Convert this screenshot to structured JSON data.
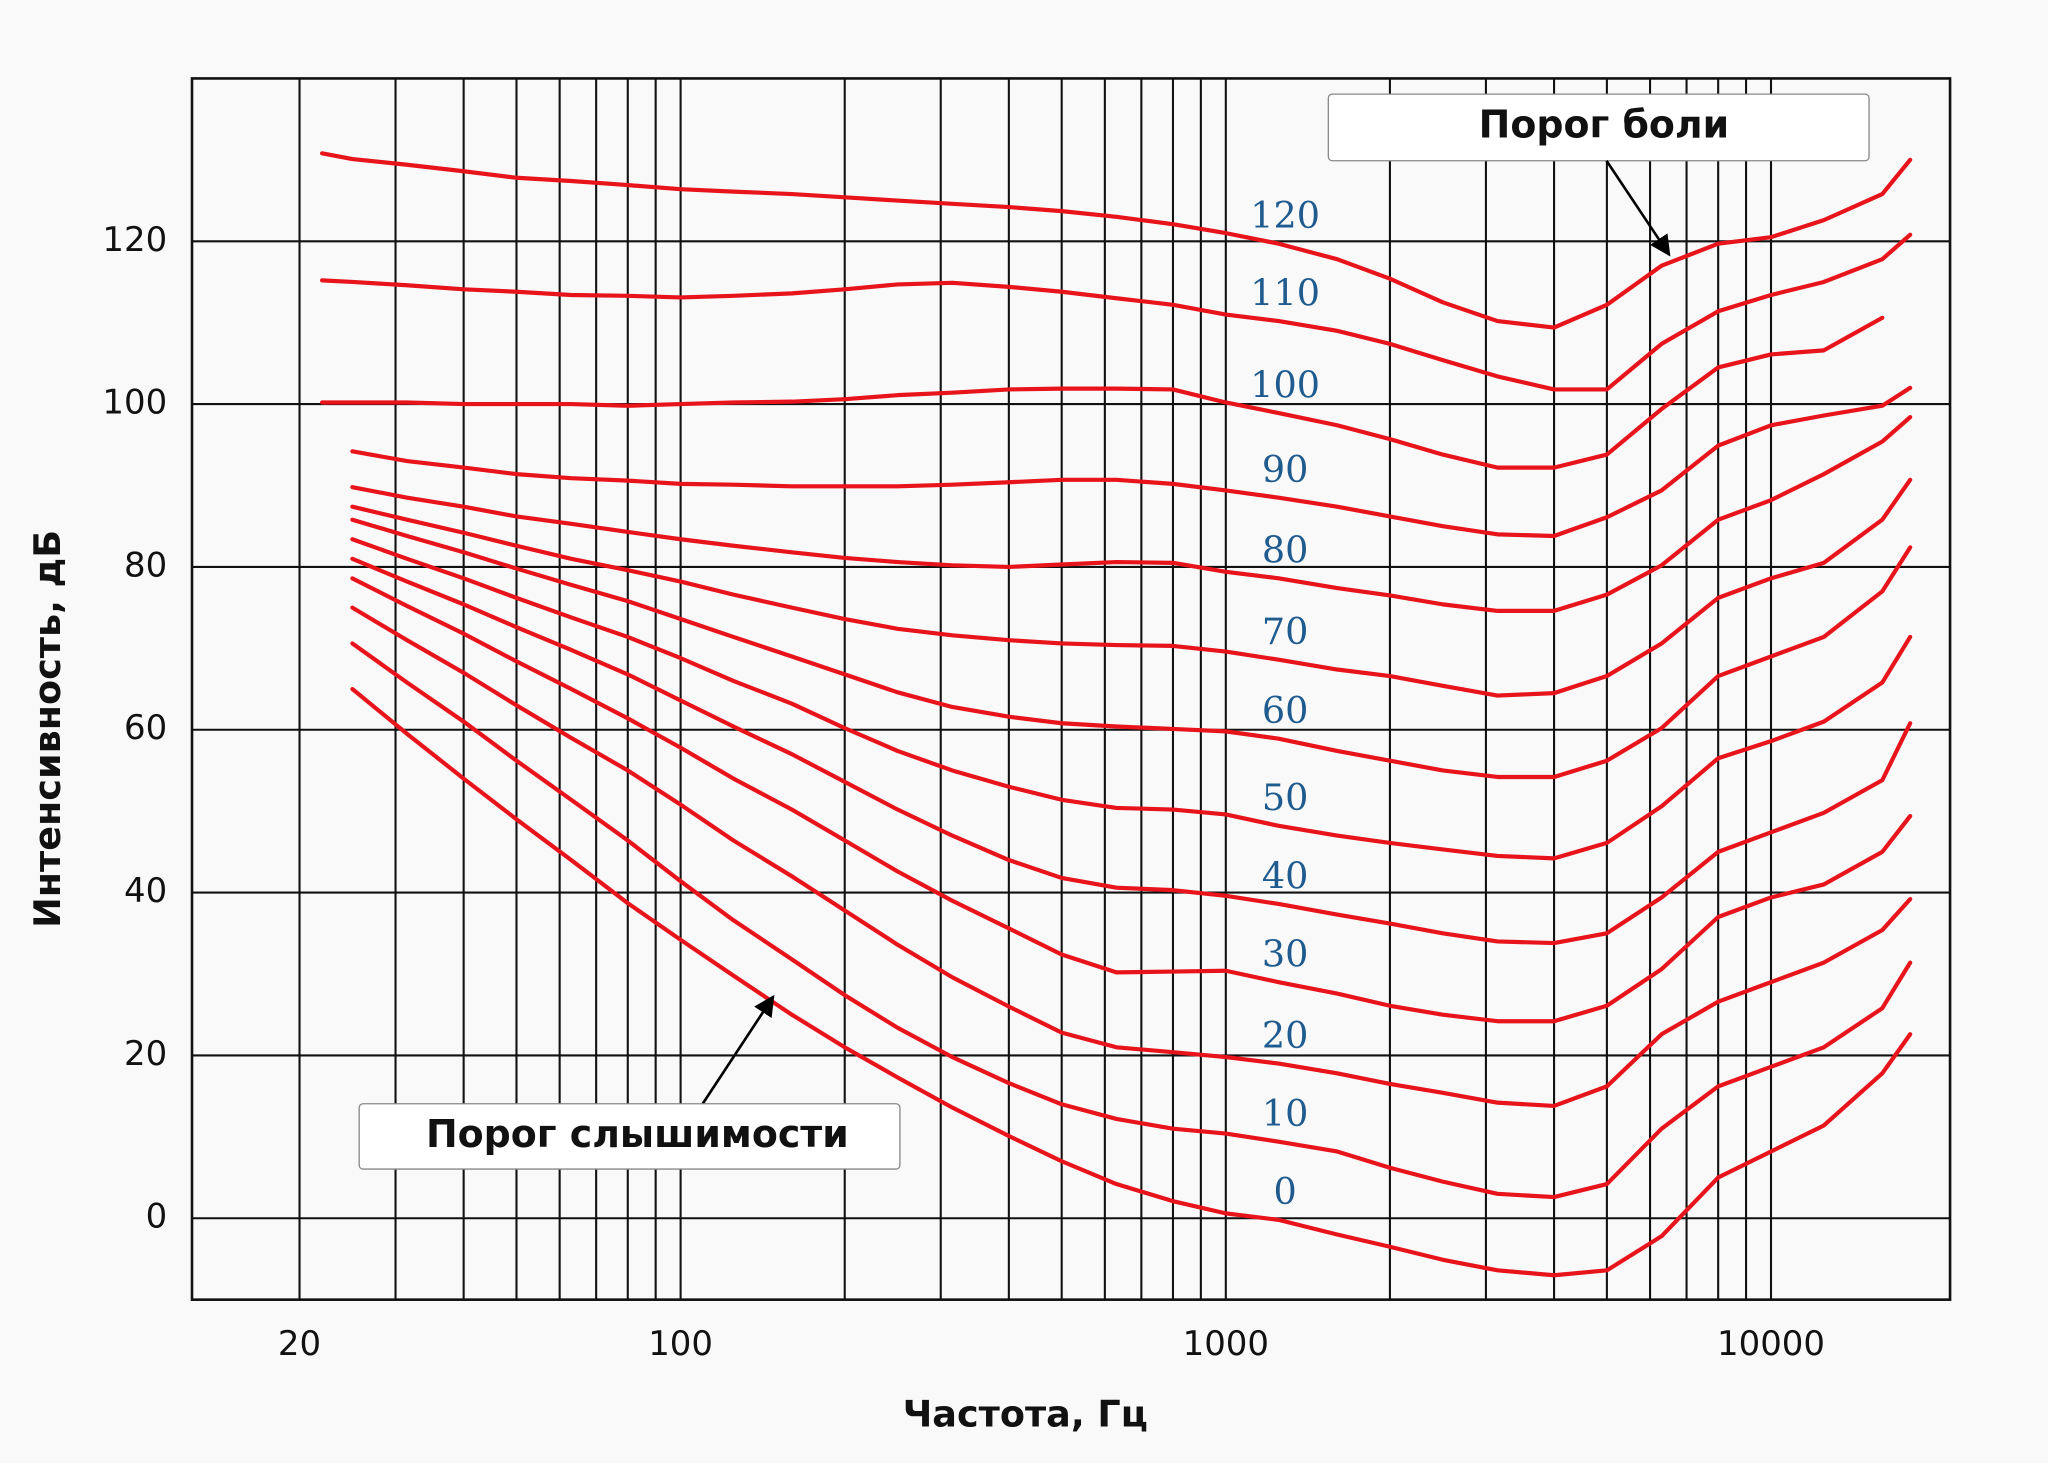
{
  "chart_data": {
    "type": "line",
    "x_label": "Частота, Гц",
    "y_label": "Интенсивность, дБ",
    "x_scale": "log",
    "xlim": [
      12.7,
      21300
    ],
    "ylim": [
      -10,
      140
    ],
    "xticks": [
      20,
      100,
      1000,
      10000
    ],
    "x_minor_grid": [
      30,
      40,
      50,
      60,
      70,
      80,
      90,
      200,
      300,
      400,
      500,
      600,
      700,
      800,
      900,
      2000,
      3000,
      4000,
      5000,
      6000,
      7000,
      8000,
      9000
    ],
    "yticks": [
      0,
      20,
      40,
      60,
      80,
      100,
      120
    ],
    "grid": true,
    "x": [
      22,
      25,
      31.5,
      40,
      50,
      63,
      80,
      100,
      125,
      160,
      200,
      250,
      315,
      400,
      500,
      630,
      800,
      1000,
      1250,
      1600,
      2000,
      2500,
      3150,
      4000,
      5000,
      6300,
      8000,
      10000,
      12500,
      16000,
      18000
    ],
    "series": [
      {
        "name": "0",
        "color": "#e8141b",
        "values": [
          null,
          65,
          59.5,
          54,
          49,
          44,
          38.7,
          34.2,
          29.8,
          25,
          21,
          17.3,
          13.6,
          10.1,
          7,
          4.2,
          2.1,
          0.6,
          -0.2,
          -2,
          -3.5,
          -5.1,
          -6.4,
          -7,
          -6.4,
          -2.2,
          5,
          8.2,
          11.4,
          17.8,
          22.6
        ]
      },
      {
        "name": "10",
        "color": "#e8141b",
        "values": [
          null,
          70.6,
          65.8,
          61,
          56.2,
          51.4,
          46.4,
          41.4,
          36.6,
          31.8,
          27.4,
          23.4,
          19.8,
          16.6,
          14,
          12.2,
          11,
          10.4,
          9.4,
          8.2,
          6.2,
          4.5,
          3,
          2.6,
          4.2,
          11,
          16.2,
          18.6,
          21,
          25.8,
          31.4
        ]
      },
      {
        "name": "20",
        "color": "#e8141b",
        "values": [
          null,
          75,
          71,
          67,
          63,
          59,
          55,
          50.8,
          46.4,
          42,
          37.8,
          33.6,
          29.6,
          26,
          22.8,
          21,
          20.4,
          19.8,
          19,
          17.8,
          16.5,
          15.4,
          14.2,
          13.8,
          16.2,
          22.6,
          26.6,
          29,
          31.4,
          35.4,
          39.2
        ]
      },
      {
        "name": "30",
        "color": "#e8141b",
        "values": [
          null,
          78.6,
          75.2,
          71.8,
          68.4,
          65,
          61.4,
          57.8,
          54,
          50.2,
          46.4,
          42.6,
          39,
          35.6,
          32.4,
          30.2,
          30.3,
          30.4,
          29,
          27.6,
          26.1,
          25,
          24.2,
          24.2,
          26.1,
          30.6,
          37,
          39.4,
          41,
          45,
          49.4
        ]
      },
      {
        "name": "40",
        "color": "#e8141b",
        "values": [
          null,
          81,
          78.2,
          75.4,
          72.6,
          69.8,
          66.8,
          63.6,
          60.4,
          57,
          53.6,
          50.2,
          47,
          44,
          41.8,
          40.6,
          40.3,
          39.6,
          38.6,
          37.3,
          36.2,
          35,
          34,
          33.8,
          35,
          39.4,
          45,
          47.4,
          49.8,
          53.8,
          60.8
        ]
      },
      {
        "name": "50",
        "color": "#e8141b",
        "values": [
          null,
          83.4,
          81,
          78.6,
          76.2,
          73.8,
          71.4,
          68.8,
          66,
          63.2,
          60.2,
          57.4,
          55,
          53,
          51.4,
          50.4,
          50.2,
          49.6,
          48.2,
          47,
          46.1,
          45.3,
          44.5,
          44.2,
          46.1,
          50.6,
          56.5,
          58.6,
          61,
          65.8,
          71.4
        ]
      },
      {
        "name": "60",
        "color": "#e8141b",
        "values": [
          null,
          85.8,
          83.8,
          81.8,
          79.8,
          77.8,
          75.8,
          73.6,
          71.4,
          69,
          66.8,
          64.6,
          62.8,
          61.6,
          60.8,
          60.4,
          60.1,
          59.8,
          58.9,
          57.4,
          56.2,
          55,
          54.2,
          54.2,
          56.2,
          60.2,
          66.6,
          69,
          71.4,
          77,
          82.4
        ]
      },
      {
        "name": "70",
        "color": "#e8141b",
        "values": [
          null,
          87.4,
          85.8,
          84.2,
          82.6,
          81,
          79.6,
          78.2,
          76.6,
          75,
          73.6,
          72.4,
          71.6,
          71,
          70.6,
          70.4,
          70.3,
          69.6,
          68.6,
          67.4,
          66.6,
          65.4,
          64.2,
          64.5,
          66.6,
          70.6,
          76.2,
          78.6,
          80.5,
          85.8,
          90.7
        ]
      },
      {
        "name": "80",
        "color": "#e8141b",
        "values": [
          null,
          89.8,
          88.5,
          87.4,
          86.2,
          85.3,
          84.3,
          83.4,
          82.6,
          81.8,
          81.1,
          80.6,
          80.2,
          80,
          80.3,
          80.6,
          80.5,
          79.4,
          78.6,
          77.4,
          76.5,
          75.4,
          74.6,
          74.6,
          76.6,
          80.2,
          85.8,
          88.2,
          91.4,
          95.4,
          98.4
        ]
      },
      {
        "name": "90",
        "color": "#e8141b",
        "values": [
          null,
          94.2,
          93,
          92.2,
          91.4,
          90.9,
          90.6,
          90.2,
          90.1,
          89.9,
          89.9,
          89.9,
          90.1,
          90.4,
          90.7,
          90.7,
          90.2,
          89.4,
          88.5,
          87.4,
          86.2,
          85,
          84,
          83.8,
          86.1,
          89.4,
          94.9,
          97.4,
          98.6,
          99.8,
          102
        ]
      },
      {
        "name": "100",
        "color": "#e8141b",
        "values": [
          100.2,
          100.2,
          100.2,
          100,
          100,
          100,
          99.8,
          100,
          100.2,
          100.3,
          100.6,
          101.1,
          101.4,
          101.8,
          101.9,
          101.9,
          101.8,
          100.2,
          98.9,
          97.4,
          95.7,
          93.8,
          92.2,
          92.2,
          93.8,
          99.4,
          104.5,
          106.1,
          106.6,
          110.6,
          null
        ]
      },
      {
        "name": "110",
        "color": "#e8141b",
        "values": [
          115.2,
          115,
          114.6,
          114.1,
          113.8,
          113.4,
          113.3,
          113.1,
          113.3,
          113.6,
          114.1,
          114.7,
          114.9,
          114.4,
          113.8,
          113,
          112.2,
          111,
          110.2,
          109,
          107.4,
          105.4,
          103.4,
          101.8,
          101.8,
          107.4,
          111.4,
          113.4,
          115,
          117.8,
          120.8
        ]
      },
      {
        "name": "120",
        "color": "#e8141b",
        "values": [
          130.8,
          130.1,
          129.4,
          128.6,
          127.8,
          127.4,
          126.9,
          126.4,
          126.1,
          125.8,
          125.4,
          125,
          124.6,
          124.2,
          123.7,
          123,
          122.1,
          121,
          119.7,
          117.8,
          115.4,
          112.5,
          110.2,
          109.4,
          112.2,
          117,
          119.7,
          120.5,
          122.6,
          125.8,
          130
        ]
      }
    ],
    "annotations": [
      {
        "text": "Порог боли"
      },
      {
        "text": "Порог слышимости"
      }
    ]
  }
}
